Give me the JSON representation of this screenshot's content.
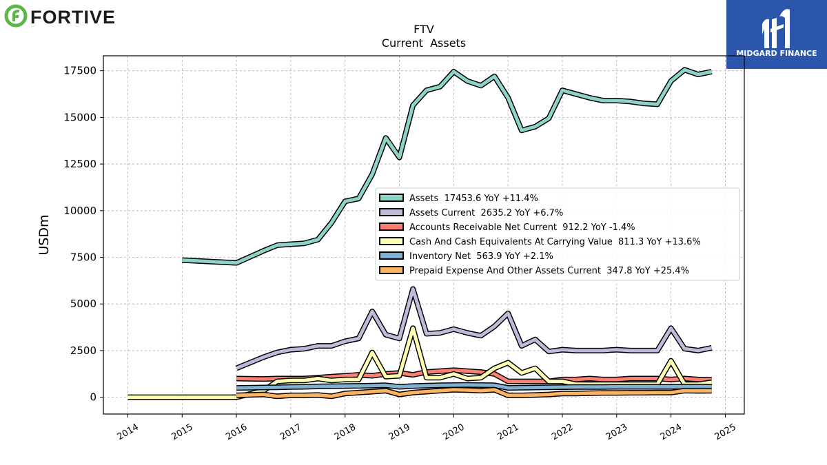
{
  "company_logo": {
    "text": "FORTIVE",
    "color": "#5db746"
  },
  "brand_logo": {
    "text": "MIDGARD FINANCE",
    "bg_color": "#2b56ab"
  },
  "chart_data": {
    "type": "line",
    "title": "FTV",
    "subtitle": "Current  Assets",
    "ylabel": "USDm",
    "xlabel": "",
    "xlim": [
      2013.55,
      2025.35
    ],
    "ylim": [
      -900,
      18300
    ],
    "x_ticks": [
      2014,
      2015,
      2016,
      2017,
      2018,
      2019,
      2020,
      2021,
      2022,
      2023,
      2024,
      2025
    ],
    "y_ticks": [
      0,
      2500,
      5000,
      7500,
      10000,
      12500,
      15000,
      17500
    ],
    "grid": true,
    "legend_position": "center-right",
    "series": [
      {
        "name": "Assets  17453.6 YoY +11.4%",
        "color": "#8dd3c7",
        "x": [
          2015.0,
          2016.0,
          2016.5,
          2016.75,
          2017.0,
          2017.25,
          2017.5,
          2017.75,
          2018.0,
          2018.25,
          2018.5,
          2018.75,
          2019.0,
          2019.25,
          2019.5,
          2019.75,
          2020.0,
          2020.25,
          2020.5,
          2020.75,
          2021.0,
          2021.25,
          2021.5,
          2021.75,
          2022.0,
          2022.25,
          2022.5,
          2022.75,
          2023.0,
          2023.25,
          2023.5,
          2023.75,
          2024.0,
          2024.25,
          2024.5,
          2024.75
        ],
        "values": [
          7350,
          7200,
          7850,
          8150,
          8200,
          8250,
          8450,
          9350,
          10500,
          10650,
          11950,
          13900,
          12850,
          15650,
          16450,
          16650,
          17450,
          16950,
          16700,
          17200,
          16050,
          14300,
          14500,
          14950,
          16450,
          16250,
          16050,
          15900,
          15900,
          15850,
          15750,
          15700,
          16950,
          17550,
          17300,
          17450
        ]
      },
      {
        "name": "Assets Current  2635.2 YoY +6.7%",
        "color": "#bebada",
        "x": [
          2016.0,
          2016.5,
          2016.75,
          2017.0,
          2017.25,
          2017.5,
          2017.75,
          2018.0,
          2018.25,
          2018.5,
          2018.75,
          2019.0,
          2019.25,
          2019.5,
          2019.75,
          2020.0,
          2020.25,
          2020.5,
          2020.75,
          2021.0,
          2021.25,
          2021.5,
          2021.75,
          2022.0,
          2022.25,
          2022.5,
          2022.75,
          2023.0,
          2023.25,
          2023.5,
          2023.75,
          2024.0,
          2024.25,
          2024.5,
          2024.75
        ],
        "values": [
          1550,
          2150,
          2400,
          2550,
          2600,
          2750,
          2750,
          3000,
          3150,
          4600,
          3350,
          3150,
          5800,
          3400,
          3450,
          3650,
          3450,
          3300,
          3800,
          4500,
          2750,
          3100,
          2450,
          2550,
          2500,
          2500,
          2500,
          2550,
          2500,
          2500,
          2500,
          3700,
          2600,
          2500,
          2650
        ]
      },
      {
        "name": "Accounts Receivable Net Current  912.2 YoY -1.4%",
        "color": "#fb8072",
        "x": [
          2016.0,
          2016.5,
          2016.75,
          2017.0,
          2017.25,
          2017.5,
          2017.75,
          2018.0,
          2018.25,
          2018.5,
          2018.75,
          2019.0,
          2019.25,
          2019.5,
          2019.75,
          2020.0,
          2020.25,
          2020.5,
          2020.75,
          2021.0,
          2021.25,
          2021.5,
          2021.75,
          2022.0,
          2022.25,
          2022.5,
          2022.75,
          2023.0,
          2023.25,
          2023.5,
          2023.75,
          2024.0,
          2024.25,
          2024.5,
          2024.75
        ],
        "values": [
          1000,
          980,
          1000,
          1000,
          1000,
          1050,
          1100,
          1150,
          1200,
          1150,
          1250,
          1300,
          1200,
          1350,
          1400,
          1450,
          1400,
          1350,
          1250,
          850,
          850,
          850,
          850,
          950,
          950,
          1000,
          950,
          950,
          1000,
          1000,
          1000,
          950,
          1000,
          950,
          930
        ]
      },
      {
        "name": "Cash And Cash Equivalents At Carrying Value  811.3 YoY +13.6%",
        "color": "#ffffb3",
        "x": [
          2014.0,
          2016.0,
          2016.5,
          2016.75,
          2017.0,
          2017.25,
          2017.5,
          2017.75,
          2018.0,
          2018.25,
          2018.5,
          2018.75,
          2019.0,
          2019.25,
          2019.5,
          2019.75,
          2020.0,
          2020.25,
          2020.5,
          2020.75,
          2021.0,
          2021.25,
          2021.5,
          2021.75,
          2022.0,
          2022.25,
          2022.5,
          2022.75,
          2023.0,
          2023.25,
          2023.5,
          2023.75,
          2024.0,
          2024.25,
          2024.5,
          2024.75
        ],
        "values": [
          0,
          0,
          350,
          850,
          900,
          900,
          1000,
          900,
          950,
          950,
          2400,
          1100,
          1150,
          3700,
          1050,
          1050,
          1250,
          1000,
          1050,
          1550,
          1850,
          1300,
          1550,
          850,
          850,
          700,
          700,
          700,
          700,
          700,
          700,
          700,
          1950,
          700,
          700,
          800
        ]
      },
      {
        "name": "Inventory Net  563.9 YoY +2.1%",
        "color": "#80b1d3",
        "x": [
          2016.0,
          2016.5,
          2016.75,
          2017.0,
          2017.25,
          2017.5,
          2017.75,
          2018.0,
          2018.25,
          2018.5,
          2018.75,
          2019.0,
          2019.25,
          2019.5,
          2019.75,
          2020.0,
          2020.25,
          2020.5,
          2020.75,
          2021.0,
          2021.25,
          2021.5,
          2021.75,
          2022.0,
          2022.25,
          2022.5,
          2022.75,
          2023.0,
          2023.25,
          2023.5,
          2023.75,
          2024.0,
          2024.25,
          2024.5,
          2024.75
        ],
        "values": [
          500,
          520,
          530,
          550,
          560,
          580,
          590,
          600,
          610,
          620,
          640,
          560,
          600,
          620,
          640,
          650,
          660,
          650,
          640,
          500,
          510,
          520,
          530,
          540,
          550,
          550,
          550,
          560,
          560,
          560,
          560,
          560,
          570,
          570,
          564
        ]
      },
      {
        "name": "Prepaid Expense And Other Assets Current  347.8 YoY +25.4%",
        "color": "#fdb462",
        "x": [
          2016.0,
          2016.5,
          2016.75,
          2017.0,
          2017.25,
          2017.5,
          2017.75,
          2018.0,
          2018.25,
          2018.5,
          2018.75,
          2019.0,
          2019.25,
          2019.5,
          2019.75,
          2020.0,
          2020.25,
          2020.5,
          2020.75,
          2021.0,
          2021.25,
          2021.5,
          2021.75,
          2022.0,
          2022.25,
          2022.5,
          2022.75,
          2023.0,
          2023.25,
          2023.5,
          2023.75,
          2024.0,
          2024.25,
          2024.5,
          2024.75
        ],
        "values": [
          100,
          150,
          50,
          100,
          100,
          120,
          50,
          200,
          250,
          300,
          350,
          150,
          250,
          300,
          350,
          400,
          380,
          350,
          400,
          100,
          100,
          120,
          150,
          200,
          200,
          220,
          230,
          230,
          240,
          240,
          250,
          250,
          350,
          340,
          348
        ]
      }
    ]
  }
}
